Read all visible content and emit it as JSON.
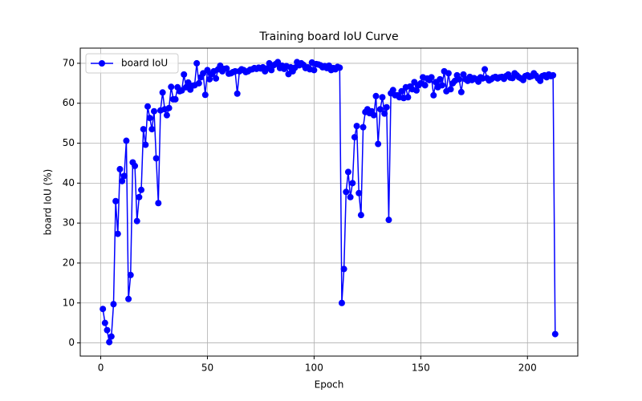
{
  "chart_data": {
    "type": "line",
    "title": "Training board IoU Curve",
    "x_label": "Epoch",
    "y_label": "board IoU (%)",
    "x": [
      1,
      2,
      3,
      4,
      5,
      6,
      7,
      8,
      9,
      10,
      11,
      12,
      13,
      14,
      15,
      16,
      17,
      18,
      19,
      20,
      21,
      22,
      23,
      24,
      25,
      26,
      27,
      28,
      29,
      30,
      31,
      32,
      33,
      34,
      35,
      36,
      37,
      38,
      39,
      40,
      41,
      42,
      43,
      44,
      45,
      46,
      47,
      48,
      49,
      50,
      51,
      52,
      53,
      54,
      55,
      56,
      57,
      58,
      59,
      60,
      61,
      62,
      63,
      64,
      65,
      66,
      67,
      68,
      69,
      70,
      71,
      72,
      73,
      74,
      75,
      76,
      77,
      78,
      79,
      80,
      81,
      82,
      83,
      84,
      85,
      86,
      87,
      88,
      89,
      90,
      91,
      92,
      93,
      94,
      95,
      96,
      97,
      98,
      99,
      100,
      101,
      102,
      103,
      104,
      105,
      106,
      107,
      108,
      109,
      110,
      111,
      112,
      113,
      114,
      115,
      116,
      117,
      118,
      119,
      120,
      121,
      122,
      123,
      124,
      125,
      126,
      127,
      128,
      129,
      130,
      131,
      132,
      133,
      134,
      135,
      136,
      137,
      138,
      139,
      140,
      141,
      142,
      143,
      144,
      145,
      146,
      147,
      148,
      149,
      150,
      151,
      152,
      153,
      154,
      155,
      156,
      157,
      158,
      159,
      160,
      161,
      162,
      163,
      164,
      165,
      166,
      167,
      168,
      169,
      170,
      171,
      172,
      173,
      174,
      175,
      176,
      177,
      178,
      179,
      180,
      181,
      182,
      183,
      184,
      185,
      186,
      187,
      188,
      189,
      190,
      191,
      192,
      193,
      194,
      195,
      196,
      197,
      198,
      199,
      200,
      201,
      202,
      203,
      204,
      205,
      206,
      207,
      208,
      209,
      210,
      211,
      212,
      213
    ],
    "series": [
      {
        "name": "board IoU",
        "color": "#0000ff",
        "values": [
          8.5,
          5,
          3.2,
          0.2,
          1.6,
          9.7,
          35.5,
          27.3,
          43.5,
          40.5,
          41.8,
          50.6,
          11,
          17,
          45.2,
          44.3,
          30.5,
          36.5,
          38.3,
          53.5,
          49.6,
          59.2,
          56.3,
          53.5,
          58,
          46.2,
          35,
          58.2,
          62.7,
          58.5,
          57,
          58.8,
          64.1,
          61,
          61,
          64,
          63,
          63.2,
          67.2,
          64,
          65.2,
          63.4,
          64.4,
          64.5,
          70,
          65,
          66.5,
          67.5,
          62.1,
          68.3,
          66,
          67.3,
          68,
          66.2,
          68.5,
          69.4,
          68,
          68.6,
          68.7,
          67.4,
          67.5,
          67.8,
          68,
          62.4,
          68,
          68.5,
          68.3,
          67.8,
          68,
          68.4,
          68.5,
          68.8,
          68.6,
          68.9,
          68.7,
          69,
          68,
          68.7,
          70,
          68.3,
          69.5,
          69.8,
          70.3,
          68.8,
          69.4,
          68.6,
          69.3,
          67.3,
          69,
          68,
          68.9,
          70.3,
          69.5,
          70,
          69.6,
          68.8,
          69,
          68.5,
          70.2,
          68.3,
          69.8,
          69.7,
          69.5,
          69,
          69.3,
          68.8,
          69.4,
          68.3,
          68.8,
          68.5,
          69.1,
          68.9,
          10,
          18.5,
          37.8,
          42.8,
          36.5,
          40,
          51.5,
          54.3,
          37.5,
          32,
          54,
          57.8,
          58.5,
          57.5,
          58,
          57,
          61.8,
          49.8,
          58.5,
          61.5,
          57.4,
          59,
          30.8,
          62.5,
          63.3,
          62,
          62,
          61.5,
          63,
          61.3,
          64,
          61.5,
          64.2,
          63.5,
          65.3,
          63.2,
          64.5,
          65,
          66.5,
          64.5,
          66.2,
          65.8,
          66.5,
          62,
          65.3,
          64,
          66,
          64.5,
          68,
          63,
          67.5,
          63.5,
          65,
          65.6,
          67,
          66,
          62.8,
          67.2,
          66,
          65.6,
          66.6,
          65.8,
          66.3,
          66,
          65.4,
          66.5,
          66.2,
          68.5,
          66.3,
          65.7,
          66,
          66.4,
          66.6,
          66.2,
          66.5,
          66.6,
          66.1,
          66.8,
          67.2,
          66.4,
          66.3,
          67.5,
          67,
          66.5,
          66.2,
          65.8,
          66.8,
          67,
          66.6,
          66.8,
          67.5,
          66.9,
          66.2,
          65.6,
          66.8,
          67,
          66.5,
          67.2,
          66.8,
          67,
          2.2
        ]
      }
    ],
    "xlim": [
      -9.6,
      223.6
    ],
    "ylim": [
      -3.3,
      73.8
    ],
    "xticks": [
      0,
      50,
      100,
      150,
      200
    ],
    "yticks": [
      0,
      10,
      20,
      30,
      40,
      50,
      60,
      70
    ],
    "grid": true,
    "legend": "upper-left"
  }
}
